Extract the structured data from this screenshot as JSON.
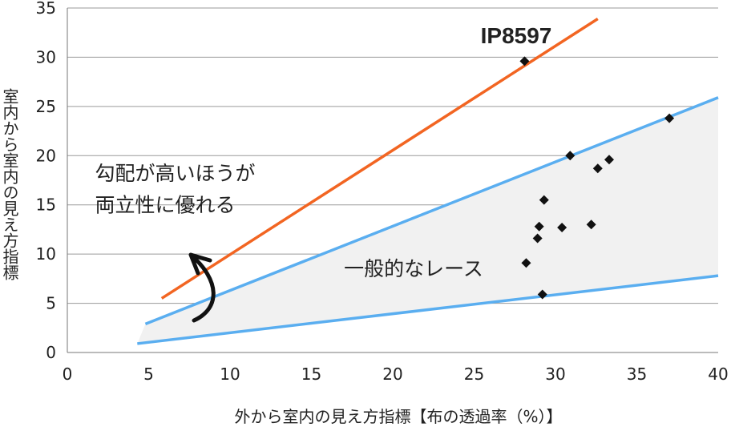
{
  "chart_data": {
    "type": "scatter",
    "xlabel": "外から室内の見え方指標【布の透過率（%）】",
    "ylabel": "室内から室内の見え方指標",
    "xlim": [
      0,
      40
    ],
    "ylim": [
      0,
      35
    ],
    "xticks": [
      0,
      5,
      10,
      15,
      20,
      25,
      30,
      35,
      40
    ],
    "yticks": [
      0,
      5,
      10,
      15,
      20,
      25,
      30,
      35
    ],
    "grid": "horizontal",
    "points": [
      {
        "x": 28.1,
        "y": 29.6
      },
      {
        "x": 37.0,
        "y": 23.8
      },
      {
        "x": 30.9,
        "y": 20.0
      },
      {
        "x": 33.3,
        "y": 19.6
      },
      {
        "x": 32.6,
        "y": 18.7
      },
      {
        "x": 29.3,
        "y": 15.5
      },
      {
        "x": 29.0,
        "y": 12.8
      },
      {
        "x": 30.4,
        "y": 12.7
      },
      {
        "x": 32.2,
        "y": 13.0
      },
      {
        "x": 28.9,
        "y": 11.6
      },
      {
        "x": 28.2,
        "y": 9.1
      },
      {
        "x": 29.2,
        "y": 5.9
      }
    ],
    "lines": [
      {
        "color": "#f26522",
        "points": [
          [
            5.8,
            5.5
          ],
          [
            32.6,
            33.9
          ]
        ]
      },
      {
        "color": "#5aaef0",
        "points": [
          [
            4.8,
            2.9
          ],
          [
            40,
            25.9
          ]
        ]
      },
      {
        "color": "#5aaef0",
        "points": [
          [
            4.3,
            0.9
          ],
          [
            40,
            7.8
          ]
        ]
      }
    ],
    "band_color": "#f1f1f1",
    "marker_color": "#111111",
    "annotations": [
      {
        "text": "IP8597",
        "x": 25.4,
        "y": 31.4,
        "style": "callout"
      },
      {
        "text": "勾配が高いほうが",
        "x": 1.7,
        "y": 17.5,
        "style": "normal"
      },
      {
        "text": "両立性に優れる",
        "x": 1.7,
        "y": 14.3,
        "style": "normal"
      },
      {
        "text": "一般的なレース",
        "x": 17.0,
        "y": 7.8,
        "style": "normal"
      }
    ]
  }
}
